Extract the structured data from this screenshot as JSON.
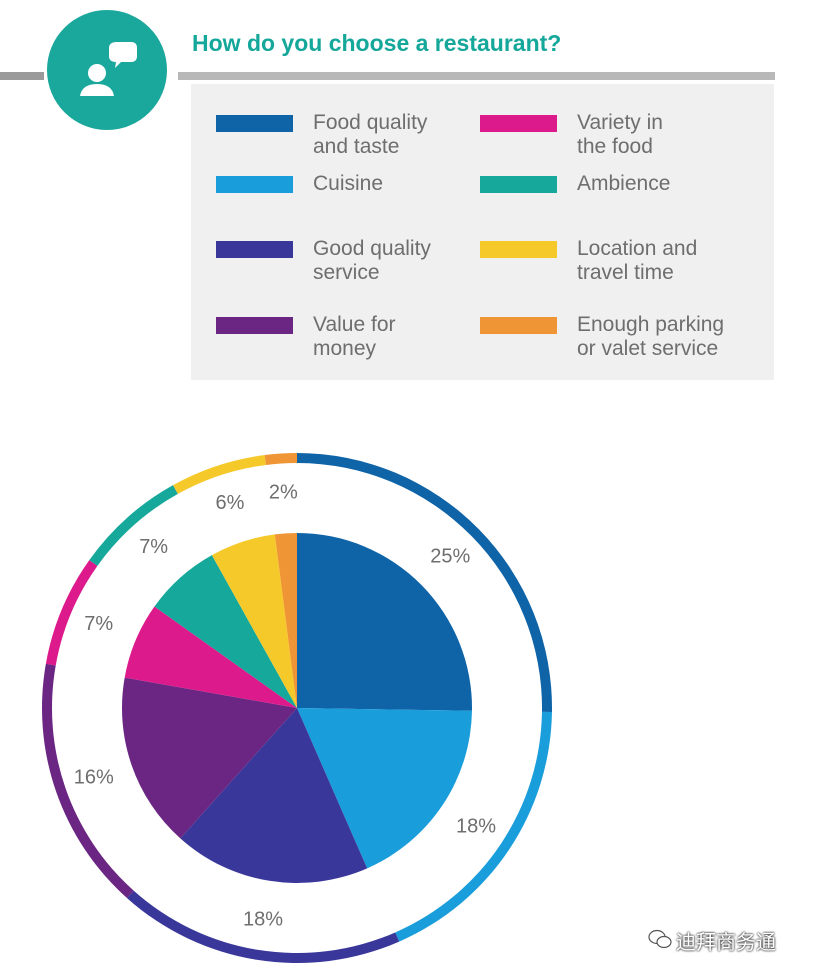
{
  "header": {
    "title": "How do you choose a restaurant?",
    "badge_icon": "person-speech-bubble-icon",
    "accent_color": "#1aa89c"
  },
  "chart_data": {
    "type": "pie",
    "categories": [
      "Food quality and taste",
      "Cuisine",
      "Good quality service",
      "Value for money",
      "Variety in the food",
      "Ambience",
      "Location and travel time",
      "Enough parking or valet service"
    ],
    "values": [
      25,
      18,
      18,
      16,
      7,
      7,
      6,
      2
    ],
    "value_labels": [
      "25%",
      "18%",
      "18%",
      "16%",
      "7%",
      "7%",
      "6%",
      "2%"
    ],
    "colors": [
      "#0f63a7",
      "#1a9ddb",
      "#3a379b",
      "#6a2682",
      "#dc1a8c",
      "#16a89a",
      "#f6c92b",
      "#ef9536"
    ],
    "legend_placement": "top",
    "legend_layout": [
      {
        "label": "Food quality\nand taste",
        "index": 0
      },
      {
        "label": "Cuisine",
        "index": 1
      },
      {
        "label": "Good quality\nservice",
        "index": 2
      },
      {
        "label": "Value for\nmoney",
        "index": 3
      },
      {
        "label": "Variety in\nthe food",
        "index": 4
      },
      {
        "label": "Ambience",
        "index": 5
      },
      {
        "label": "Location and\ntravel time",
        "index": 6
      },
      {
        "label": "Enough parking\nor valet service",
        "index": 7
      }
    ]
  },
  "watermark": {
    "text": "迪拜商务通",
    "icon": "wechat-icon"
  }
}
